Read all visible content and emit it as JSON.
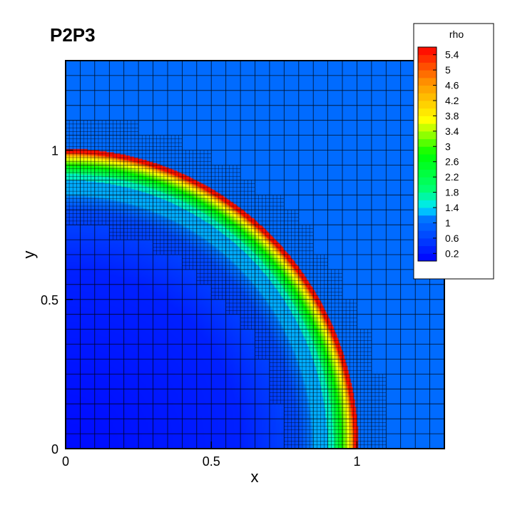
{
  "chart_data": {
    "type": "heatmap",
    "title": "P2P3",
    "xlabel": "x",
    "ylabel": "y",
    "xlim": [
      0,
      1.3
    ],
    "ylim": [
      0,
      1.3
    ],
    "xticks": [
      {
        "value": 0,
        "label": "0"
      },
      {
        "value": 0.5,
        "label": "0.5"
      },
      {
        "value": 1,
        "label": "1"
      }
    ],
    "yticks": [
      {
        "value": 0,
        "label": "0"
      },
      {
        "value": 0.5,
        "label": "0.5"
      },
      {
        "value": 1,
        "label": "1"
      }
    ],
    "variable": "rho",
    "colorbar": {
      "title": "rho",
      "min": 0.0,
      "max": 5.6,
      "labels": [
        "5.4",
        "5",
        "4.6",
        "4.2",
        "3.8",
        "3.4",
        "3",
        "2.6",
        "2.2",
        "1.8",
        "1.4",
        "1",
        "0.6",
        "0.2"
      ],
      "placement": "top-right"
    },
    "field": {
      "shock_radius": 1.0,
      "peak_density": 5.6,
      "ambient_density": 1.0,
      "center": [
        0,
        0
      ],
      "shape": "quarter-circle radial blast wave"
    },
    "mesh": {
      "coarse_cells_per_axis": 26,
      "refinement_factor": 4,
      "refined_band": [
        0.74,
        1.1
      ]
    }
  }
}
